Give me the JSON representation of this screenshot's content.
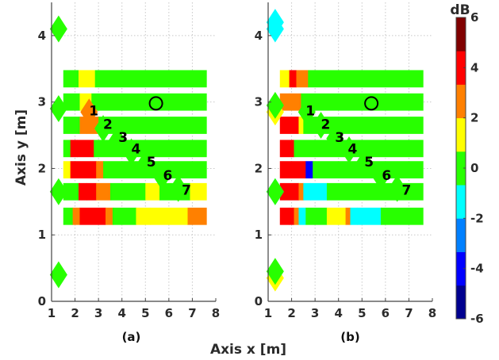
{
  "chart_data": {
    "type": "heatmap",
    "xlabel": "Axis x [m]",
    "ylabel": "Axis y [m]",
    "xlim": [
      1,
      8
    ],
    "ylim": [
      0,
      4.5
    ],
    "xticks": [
      1,
      2,
      3,
      4,
      5,
      6,
      7,
      8
    ],
    "yticks": [
      0,
      1,
      2,
      3,
      4
    ],
    "grid": true,
    "colorbar": {
      "label": "dB",
      "range": [
        -6,
        6
      ],
      "ticks": [
        6,
        4,
        2,
        0,
        -2,
        -4,
        -6
      ],
      "colormap": "jet-discrete",
      "stops": [
        "#00008f",
        "#0000ff",
        "#0080ff",
        "#00ffff",
        "#28ff00",
        "#ffff00",
        "#ff8000",
        "#ff0000",
        "#800000"
      ]
    },
    "row_y_centers": [
      3.35,
      3.0,
      2.65,
      2.3,
      1.98,
      1.65,
      1.28
    ],
    "row_half_height": 0.13,
    "row_x_range": [
      1.5,
      7.6
    ],
    "panels": [
      {
        "label": "(a)",
        "rows": [
          [
            [
              1.5,
              2.15,
              0
            ],
            [
              2.15,
              2.85,
              1.6
            ],
            [
              2.85,
              7.6,
              0
            ]
          ],
          [
            [
              1.5,
              2.2,
              0
            ],
            [
              2.2,
              2.7,
              1.9
            ],
            [
              2.7,
              7.6,
              0
            ]
          ],
          [
            [
              1.5,
              2.2,
              0
            ],
            [
              2.2,
              2.5,
              3.2
            ],
            [
              2.5,
              3.0,
              2.2
            ],
            [
              3.0,
              7.6,
              0
            ]
          ],
          [
            [
              1.5,
              1.8,
              0
            ],
            [
              1.8,
              2.1,
              3.6
            ],
            [
              2.1,
              2.8,
              3.9
            ],
            [
              2.8,
              7.6,
              0
            ]
          ],
          [
            [
              1.5,
              1.8,
              1.5
            ],
            [
              1.8,
              2.9,
              3.6
            ],
            [
              2.9,
              3.2,
              2.5
            ],
            [
              3.2,
              7.6,
              0
            ]
          ],
          [
            [
              1.5,
              2.15,
              0
            ],
            [
              2.15,
              2.5,
              3.6
            ],
            [
              2.5,
              2.9,
              4.5
            ],
            [
              2.9,
              3.5,
              2.6
            ],
            [
              3.5,
              5.0,
              0
            ],
            [
              5.0,
              5.6,
              1.5
            ],
            [
              5.6,
              6.9,
              0
            ],
            [
              6.9,
              7.6,
              1.5
            ]
          ],
          [
            [
              1.5,
              1.9,
              0
            ],
            [
              1.9,
              2.2,
              3.3
            ],
            [
              2.2,
              3.3,
              4.2
            ],
            [
              3.3,
              3.6,
              2.4
            ],
            [
              3.6,
              4.6,
              0
            ],
            [
              4.6,
              5.2,
              1.5
            ],
            [
              5.2,
              6.8,
              1.9
            ],
            [
              6.8,
              7.6,
              2.4
            ]
          ]
        ],
        "diamonds": [
          {
            "x": 1.3,
            "y": 4.1,
            "db": 0
          },
          {
            "x": 1.3,
            "y": 2.9,
            "db": 0
          },
          {
            "x": 1.3,
            "y": 1.65,
            "db": 0
          },
          {
            "x": 1.3,
            "y": 0.4,
            "db": 0
          },
          {
            "x": 2.6,
            "y": 2.85,
            "db": 2.4
          },
          {
            "x": 3.2,
            "y": 2.6,
            "db": 0
          },
          {
            "x": 3.8,
            "y": 2.42,
            "db": 0
          },
          {
            "x": 4.4,
            "y": 2.25,
            "db": 0
          },
          {
            "x": 5.0,
            "y": 2.07,
            "db": 0
          },
          {
            "x": 5.7,
            "y": 1.88,
            "db": 0
          },
          {
            "x": 6.4,
            "y": 1.7,
            "db": 0
          }
        ],
        "numbers": [
          {
            "x": 2.8,
            "y": 2.87,
            "t": "1"
          },
          {
            "x": 3.4,
            "y": 2.67,
            "t": "2"
          },
          {
            "x": 4.05,
            "y": 2.47,
            "t": "3"
          },
          {
            "x": 4.6,
            "y": 2.3,
            "t": "4"
          },
          {
            "x": 5.25,
            "y": 2.1,
            "t": "5"
          },
          {
            "x": 5.95,
            "y": 1.9,
            "t": "6"
          },
          {
            "x": 6.75,
            "y": 1.68,
            "t": "7"
          }
        ],
        "circle": {
          "x": 5.45,
          "y": 2.98
        }
      },
      {
        "label": "(b)",
        "rows": [
          [
            [
              1.5,
              1.9,
              1.9
            ],
            [
              1.9,
              2.2,
              3.5
            ],
            [
              2.2,
              2.7,
              2.5
            ],
            [
              2.7,
              7.6,
              0
            ]
          ],
          [
            [
              1.5,
              1.9,
              3.3
            ],
            [
              1.9,
              2.4,
              3.1
            ],
            [
              2.4,
              7.6,
              0
            ]
          ],
          [
            [
              1.5,
              2.3,
              3.6
            ],
            [
              2.3,
              2.5,
              1.6
            ],
            [
              2.5,
              7.6,
              0
            ]
          ],
          [
            [
              1.5,
              2.1,
              4.0
            ],
            [
              2.1,
              7.6,
              0
            ]
          ],
          [
            [
              1.5,
              2.6,
              4.4
            ],
            [
              2.6,
              2.9,
              -3.5
            ],
            [
              2.9,
              7.6,
              0
            ]
          ],
          [
            [
              1.5,
              2.3,
              4.5
            ],
            [
              2.3,
              2.5,
              3.0
            ],
            [
              2.5,
              2.8,
              -1.5
            ],
            [
              2.8,
              3.5,
              -1.9
            ],
            [
              3.5,
              7.6,
              0
            ]
          ],
          [
            [
              1.5,
              1.9,
              3.9
            ],
            [
              1.9,
              2.1,
              4.6
            ],
            [
              2.1,
              2.3,
              3.3
            ],
            [
              2.3,
              2.6,
              -1.4
            ],
            [
              2.6,
              3.5,
              0
            ],
            [
              3.5,
              4.3,
              1.5
            ],
            [
              4.3,
              4.5,
              2.6
            ],
            [
              4.5,
              4.8,
              -1.3
            ],
            [
              4.8,
              5.8,
              -1.9
            ],
            [
              5.8,
              7.6,
              0
            ]
          ]
        ],
        "diamonds": [
          {
            "x": 1.3,
            "y": 4.1,
            "db": -1.6
          },
          {
            "x": 1.3,
            "y": 2.85,
            "db": 1.4
          },
          {
            "x": 1.3,
            "y": 1.65,
            "db": -1.4
          },
          {
            "x": 1.3,
            "y": 0.35,
            "db": 1.4
          },
          {
            "x": 1.3,
            "y": 2.95,
            "db": 0
          },
          {
            "x": 1.3,
            "y": 1.65,
            "db": 0
          },
          {
            "x": 1.3,
            "y": 0.45,
            "db": 0
          },
          {
            "x": 1.3,
            "y": 4.2,
            "db": -2.0
          },
          {
            "x": 2.65,
            "y": 2.85,
            "db": 0
          },
          {
            "x": 3.25,
            "y": 2.65,
            "db": 0
          },
          {
            "x": 3.85,
            "y": 2.45,
            "db": 0
          },
          {
            "x": 4.45,
            "y": 2.28,
            "db": 0
          },
          {
            "x": 5.1,
            "y": 2.08,
            "db": 0
          },
          {
            "x": 5.8,
            "y": 1.88,
            "db": 0
          },
          {
            "x": 6.5,
            "y": 1.7,
            "db": 0
          }
        ],
        "numbers": [
          {
            "x": 2.8,
            "y": 2.87,
            "t": "1"
          },
          {
            "x": 3.45,
            "y": 2.67,
            "t": "2"
          },
          {
            "x": 4.05,
            "y": 2.47,
            "t": "3"
          },
          {
            "x": 4.6,
            "y": 2.3,
            "t": "4"
          },
          {
            "x": 5.3,
            "y": 2.1,
            "t": "5"
          },
          {
            "x": 6.05,
            "y": 1.9,
            "t": "6"
          },
          {
            "x": 6.9,
            "y": 1.68,
            "t": "7"
          }
        ],
        "circle": {
          "x": 5.4,
          "y": 2.98
        }
      }
    ]
  }
}
